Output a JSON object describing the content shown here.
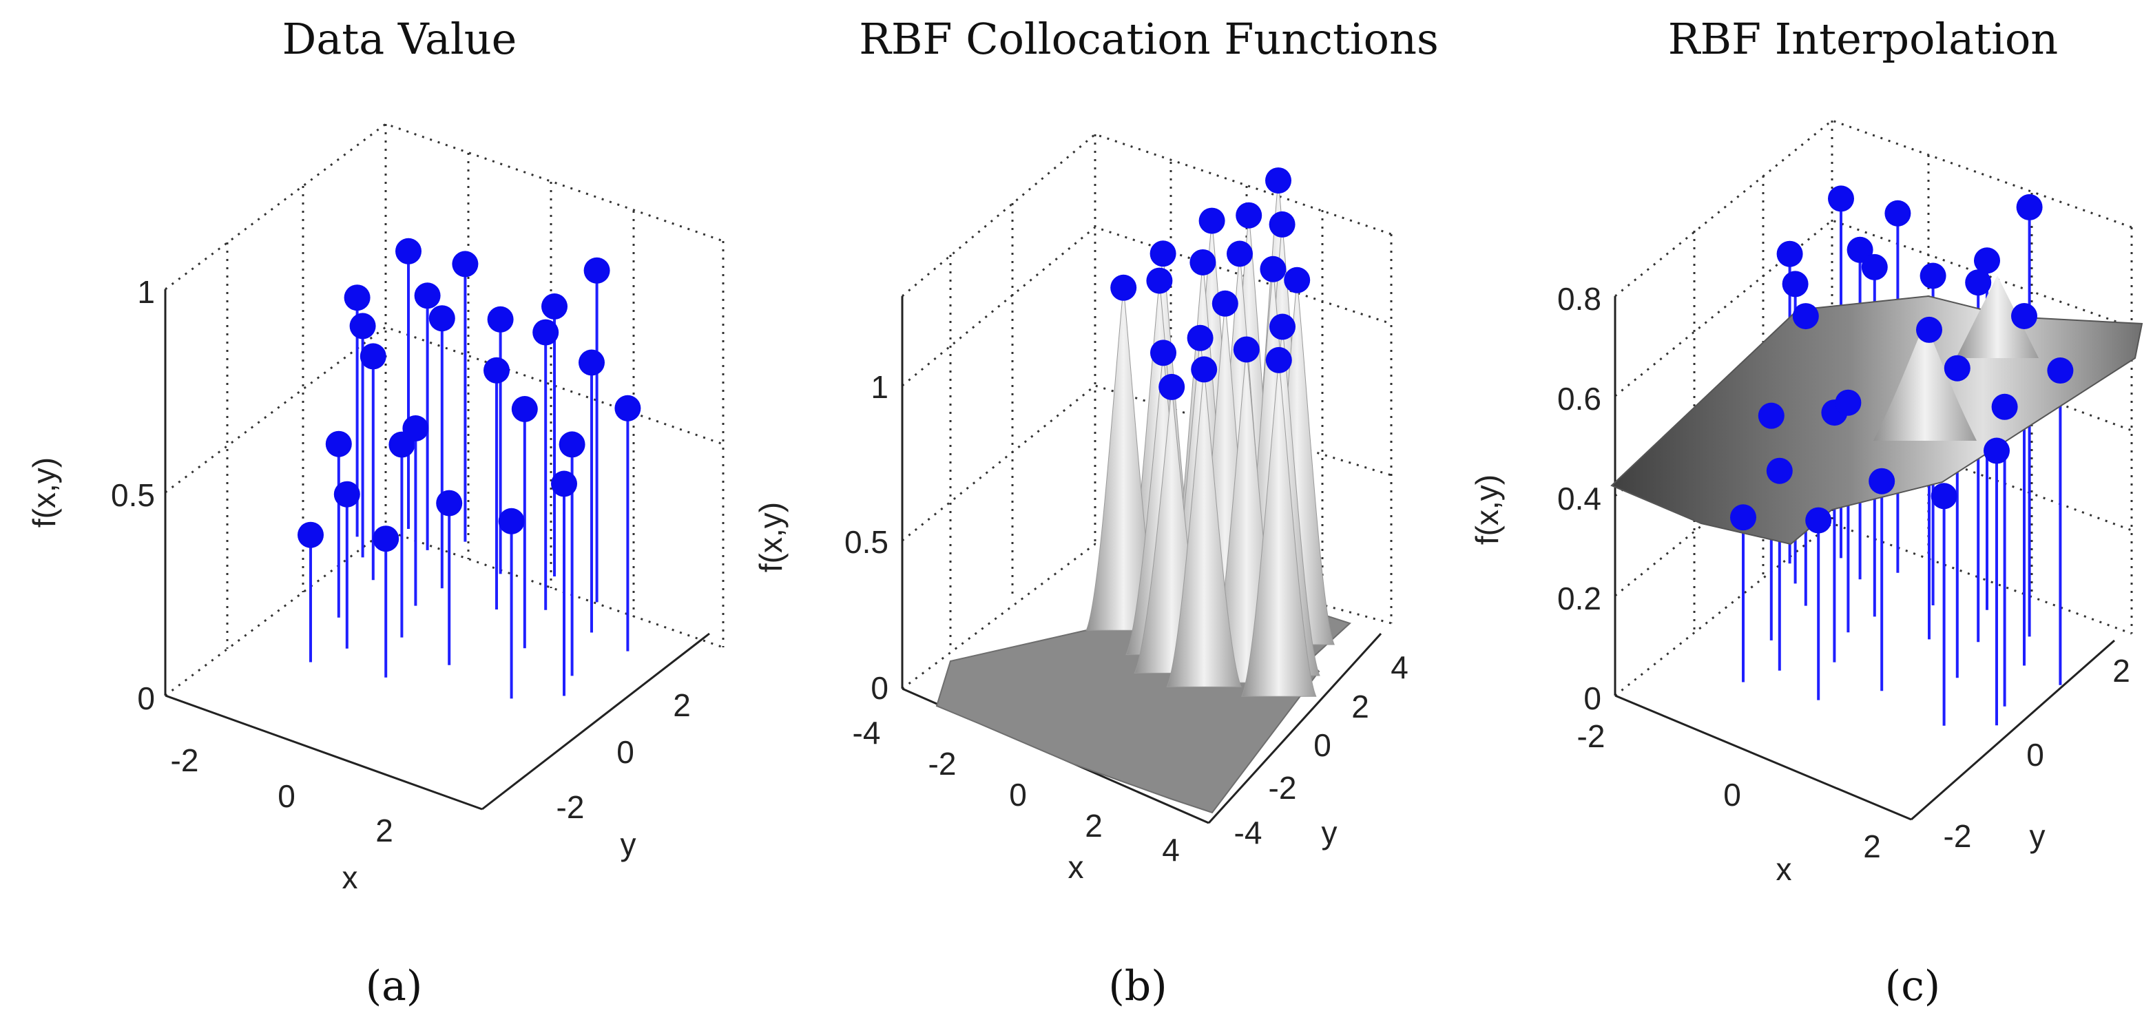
{
  "figure": {
    "panels": [
      {
        "id": "a",
        "title": "Data Value",
        "caption": "(a)"
      },
      {
        "id": "b",
        "title": "RBF Collocation Functions",
        "caption": "(b)"
      },
      {
        "id": "c",
        "title": "RBF Interpolation",
        "caption": "(c)"
      }
    ]
  },
  "colors": {
    "marker": "#0a0af0",
    "stem": "#1f1fff",
    "surface_dark": "#5a5a5a",
    "surface_light": "#d8d8d8"
  },
  "chart_data": [
    {
      "type": "scatter",
      "subtype": "3d-stem",
      "title": "Data Value",
      "xlabel": "x",
      "ylabel": "y",
      "zlabel": "f(x,y)",
      "xticks": [
        "-2",
        "0",
        "2"
      ],
      "yticks": [
        "-2",
        "0",
        "2"
      ],
      "zticks": [
        "0",
        "0.5",
        "1"
      ],
      "xlim": [
        -3,
        3
      ],
      "ylim": [
        -3,
        3
      ],
      "zlim": [
        0,
        1
      ],
      "grid": true,
      "points": [
        {
          "x": -2.8,
          "y": 1.6,
          "z": 0.62
        },
        {
          "x": -2.4,
          "y": 1.2,
          "z": 0.6
        },
        {
          "x": -1.9,
          "y": 0.8,
          "z": 0.58
        },
        {
          "x": -2.2,
          "y": 2.2,
          "z": 0.72
        },
        {
          "x": -1.6,
          "y": 1.9,
          "z": 0.66
        },
        {
          "x": -1.2,
          "y": 2.4,
          "z": 0.72
        },
        {
          "x": -0.8,
          "y": 1.2,
          "z": 0.7
        },
        {
          "x": -1.8,
          "y": -0.3,
          "z": 0.45
        },
        {
          "x": -1.2,
          "y": -0.9,
          "z": 0.4
        },
        {
          "x": -0.6,
          "y": -0.2,
          "z": 0.5
        },
        {
          "x": -0.9,
          "y": 0.6,
          "z": 0.46
        },
        {
          "x": -0.2,
          "y": 2.0,
          "z": 0.66
        },
        {
          "x": 0.3,
          "y": 1.2,
          "z": 0.62
        },
        {
          "x": 0.6,
          "y": 2.4,
          "z": 0.7
        },
        {
          "x": 1.0,
          "y": 1.6,
          "z": 0.72
        },
        {
          "x": 1.3,
          "y": 0.6,
          "z": 0.62
        },
        {
          "x": 1.6,
          "y": 2.2,
          "z": 0.86
        },
        {
          "x": 2.0,
          "y": 1.5,
          "z": 0.7
        },
        {
          "x": 2.4,
          "y": 0.4,
          "z": 0.6
        },
        {
          "x": 2.8,
          "y": 1.4,
          "z": 0.63
        },
        {
          "x": 1.9,
          "y": -0.6,
          "z": 0.46
        },
        {
          "x": 0.5,
          "y": -0.4,
          "z": 0.42
        },
        {
          "x": -0.2,
          "y": -1.2,
          "z": 0.36
        },
        {
          "x": -1.5,
          "y": -1.5,
          "z": 0.33
        },
        {
          "x": 2.6,
          "y": -0.1,
          "z": 0.55
        }
      ]
    },
    {
      "type": "scatter",
      "subtype": "3d-surface-with-points",
      "title": "RBF Collocation Functions",
      "xlabel": "x",
      "ylabel": "y",
      "zlabel": "f(x,y)",
      "xticks": [
        "-4",
        "-2",
        "0",
        "2",
        "4"
      ],
      "yticks": [
        "-4",
        "-2",
        "0",
        "2",
        "4"
      ],
      "zticks": [
        "0",
        "0.5",
        "1"
      ],
      "xlim": [
        -4,
        4
      ],
      "ylim": [
        -4,
        4
      ],
      "zlim": [
        0,
        1.3
      ],
      "grid": true,
      "points": [
        {
          "x": -2.2,
          "y": 1.6,
          "z": 1.1
        },
        {
          "x": -1.8,
          "y": 1.0,
          "z": 1.08
        },
        {
          "x": -1.2,
          "y": 2.2,
          "z": 1.2
        },
        {
          "x": -0.8,
          "y": 1.4,
          "z": 1.15
        },
        {
          "x": -0.4,
          "y": 2.6,
          "z": 1.22
        },
        {
          "x": 0.0,
          "y": 1.8,
          "z": 1.18
        },
        {
          "x": 0.4,
          "y": 0.8,
          "z": 1.12
        },
        {
          "x": 0.8,
          "y": 2.4,
          "z": 1.26
        },
        {
          "x": 1.2,
          "y": 1.6,
          "z": 1.2
        },
        {
          "x": 1.6,
          "y": 2.0,
          "z": 1.15
        },
        {
          "x": 2.0,
          "y": 1.0,
          "z": 1.1
        },
        {
          "x": -1.0,
          "y": 0.2,
          "z": 0.95
        },
        {
          "x": -0.4,
          "y": -0.2,
          "z": 0.9
        },
        {
          "x": 0.6,
          "y": -0.2,
          "z": 1.0
        },
        {
          "x": 1.4,
          "y": 0.4,
          "z": 1.05
        },
        {
          "x": -2.4,
          "y": 0.4,
          "z": 1.08
        },
        {
          "x": 2.4,
          "y": 0.4,
          "z": 1.06
        },
        {
          "x": 0.0,
          "y": 3.2,
          "z": 1.3
        },
        {
          "x": -0.2,
          "y": 0.6,
          "z": 1.0
        }
      ]
    },
    {
      "type": "scatter",
      "subtype": "3d-surface-with-stems",
      "title": "RBF Interpolation",
      "xlabel": "x",
      "ylabel": "y",
      "zlabel": "f(x,y)",
      "xticks": [
        "-2",
        "0",
        "2"
      ],
      "yticks": [
        "-2",
        "0",
        "2"
      ],
      "zticks": [
        "0",
        "0.2",
        "0.4",
        "0.6",
        "0.8"
      ],
      "xlim": [
        -3,
        3
      ],
      "ylim": [
        -3,
        3
      ],
      "zlim": [
        0,
        0.8
      ],
      "grid": true,
      "points": [
        {
          "x": -2.8,
          "y": 1.6,
          "z": 0.62
        },
        {
          "x": -2.4,
          "y": 1.2,
          "z": 0.6
        },
        {
          "x": -1.9,
          "y": 0.8,
          "z": 0.58
        },
        {
          "x": -2.2,
          "y": 2.2,
          "z": 0.72
        },
        {
          "x": -1.6,
          "y": 1.9,
          "z": 0.66
        },
        {
          "x": -1.2,
          "y": 2.4,
          "z": 0.72
        },
        {
          "x": -0.8,
          "y": 1.2,
          "z": 0.7
        },
        {
          "x": -1.8,
          "y": -0.3,
          "z": 0.45
        },
        {
          "x": -1.2,
          "y": -0.9,
          "z": 0.4
        },
        {
          "x": -0.6,
          "y": -0.2,
          "z": 0.5
        },
        {
          "x": -0.9,
          "y": 0.6,
          "z": 0.46
        },
        {
          "x": -0.2,
          "y": 2.0,
          "z": 0.66
        },
        {
          "x": 0.3,
          "y": 1.2,
          "z": 0.62
        },
        {
          "x": 0.6,
          "y": 2.4,
          "z": 0.7
        },
        {
          "x": 1.0,
          "y": 1.6,
          "z": 0.72
        },
        {
          "x": 1.3,
          "y": 0.6,
          "z": 0.62
        },
        {
          "x": 1.6,
          "y": 2.2,
          "z": 0.86
        },
        {
          "x": 2.0,
          "y": 1.5,
          "z": 0.7
        },
        {
          "x": 2.4,
          "y": 0.4,
          "z": 0.6
        },
        {
          "x": 2.8,
          "y": 1.4,
          "z": 0.63
        },
        {
          "x": 1.9,
          "y": -0.6,
          "z": 0.46
        },
        {
          "x": 0.5,
          "y": -0.4,
          "z": 0.42
        },
        {
          "x": -0.2,
          "y": -1.2,
          "z": 0.36
        },
        {
          "x": -1.5,
          "y": -1.5,
          "z": 0.33
        },
        {
          "x": 2.6,
          "y": -0.1,
          "z": 0.55
        }
      ]
    }
  ]
}
